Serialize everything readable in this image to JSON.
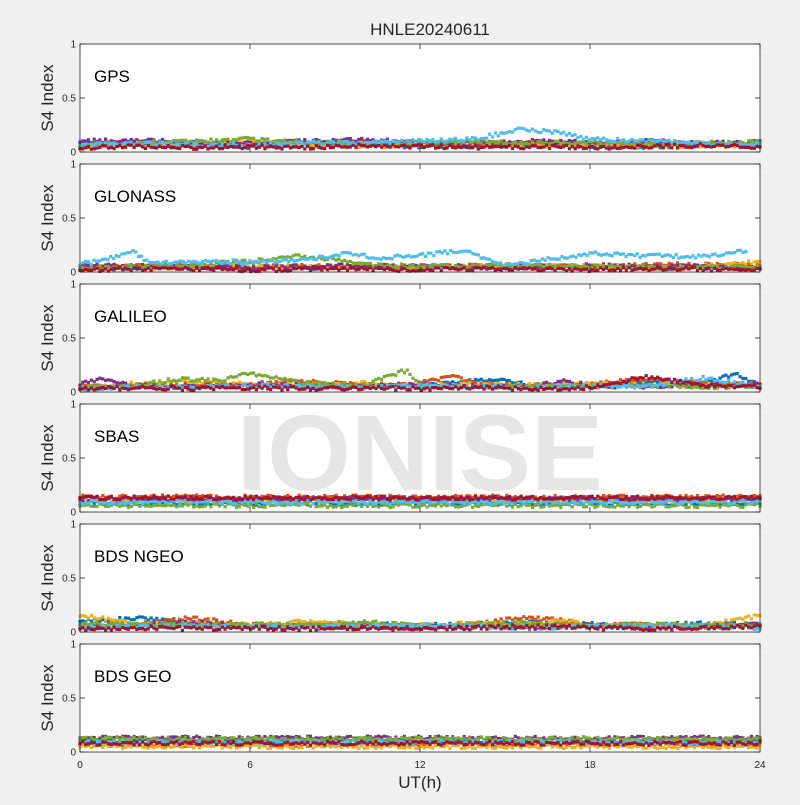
{
  "figure": {
    "title": "HNLE20240611",
    "xlabel": "UT(h)",
    "watermark": "IONISE"
  },
  "chart_data": [
    {
      "type": "scatter",
      "panel_label": "GPS",
      "ylabel": "S4 Index",
      "xlim": [
        0,
        24
      ],
      "ylim": [
        0,
        1
      ],
      "xticks": [
        0,
        6,
        12,
        18,
        24
      ],
      "yticks": [
        0,
        0.5,
        1
      ],
      "series": [
        {
          "color": "#0072BD",
          "x": [
            0,
            2,
            4,
            6,
            8,
            10,
            12,
            14,
            16,
            18,
            20,
            22,
            24
          ],
          "y": [
            0.08,
            0.07,
            0.06,
            0.05,
            0.06,
            0.07,
            0.05,
            0.06,
            0.07,
            0.06,
            0.05,
            0.07,
            0.08
          ]
        },
        {
          "color": "#D95319",
          "x": [
            0,
            2,
            4,
            6,
            8,
            10,
            12,
            14,
            16,
            18,
            20,
            22,
            24
          ],
          "y": [
            0.06,
            0.09,
            0.08,
            0.07,
            0.08,
            0.1,
            0.08,
            0.07,
            0.08,
            0.07,
            0.09,
            0.08,
            0.07
          ]
        },
        {
          "color": "#EDB120",
          "x": [
            0,
            2,
            4,
            6,
            8,
            10,
            12,
            14,
            16,
            18,
            20,
            22,
            24
          ],
          "y": [
            0.05,
            0.06,
            0.07,
            0.09,
            0.06,
            0.05,
            0.07,
            0.09,
            0.06,
            0.07,
            0.06,
            0.05,
            0.06
          ]
        },
        {
          "color": "#7E2F8E",
          "x": [
            0,
            2,
            4,
            6,
            8,
            10,
            12,
            14,
            16,
            18,
            20,
            22,
            24
          ],
          "y": [
            0.1,
            0.11,
            0.09,
            0.08,
            0.1,
            0.11,
            0.09,
            0.08,
            0.1,
            0.09,
            0.1,
            0.08,
            0.09
          ]
        },
        {
          "color": "#77AC30",
          "x": [
            0,
            2,
            4,
            6,
            8,
            10,
            12,
            14,
            16,
            18,
            20,
            22,
            24
          ],
          "y": [
            0.07,
            0.08,
            0.1,
            0.12,
            0.09,
            0.08,
            0.09,
            0.1,
            0.08,
            0.09,
            0.07,
            0.08,
            0.09
          ]
        },
        {
          "color": "#4DBEEE",
          "x": [
            0,
            2,
            4,
            6,
            8,
            10,
            12,
            14,
            15.5,
            17,
            18,
            20,
            22,
            24
          ],
          "y": [
            0.06,
            0.08,
            0.07,
            0.06,
            0.08,
            0.09,
            0.1,
            0.12,
            0.21,
            0.18,
            0.12,
            0.1,
            0.08,
            0.07
          ]
        },
        {
          "color": "#A2142F",
          "x": [
            0,
            2,
            4,
            6,
            8,
            10,
            12,
            14,
            16,
            18,
            20,
            22,
            24
          ],
          "y": [
            0.04,
            0.05,
            0.04,
            0.05,
            0.04,
            0.06,
            0.05,
            0.04,
            0.05,
            0.04,
            0.05,
            0.06,
            0.05
          ]
        }
      ]
    },
    {
      "type": "scatter",
      "panel_label": "GLONASS",
      "ylabel": "S4 Index",
      "xlim": [
        0,
        24
      ],
      "ylim": [
        0,
        1
      ],
      "xticks": [
        0,
        6,
        12,
        18,
        24
      ],
      "yticks": [
        0,
        0.5,
        1
      ],
      "series": [
        {
          "color": "#0072BD",
          "x": [
            0,
            3,
            6,
            9,
            12,
            15,
            18,
            21,
            24
          ],
          "y": [
            0.03,
            0.04,
            0.05,
            0.04,
            0.05,
            0.04,
            0.05,
            0.04,
            0.05
          ]
        },
        {
          "color": "#D95319",
          "x": [
            0,
            3,
            6,
            9,
            12,
            15,
            18,
            21,
            24
          ],
          "y": [
            0.04,
            0.06,
            0.05,
            0.06,
            0.05,
            0.06,
            0.05,
            0.07,
            0.06
          ]
        },
        {
          "color": "#EDB120",
          "x": [
            0,
            3,
            6,
            9,
            12,
            15,
            18,
            21,
            24
          ],
          "y": [
            0.05,
            0.04,
            0.06,
            0.05,
            0.04,
            0.06,
            0.05,
            0.04,
            0.09
          ]
        },
        {
          "color": "#7E2F8E",
          "x": [
            0,
            3,
            6,
            9,
            12,
            15,
            18,
            21,
            24
          ],
          "y": [
            0.06,
            0.05,
            0.04,
            0.06,
            0.05,
            0.04,
            0.06,
            0.05,
            0.04
          ]
        },
        {
          "color": "#77AC30",
          "x": [
            0,
            3,
            6,
            7.5,
            9,
            10,
            12,
            15,
            18,
            21,
            24
          ],
          "y": [
            0.04,
            0.05,
            0.1,
            0.15,
            0.12,
            0.07,
            0.05,
            0.06,
            0.05,
            0.04,
            0.05
          ]
        },
        {
          "color": "#4DBEEE",
          "x": [
            0,
            1,
            1.8,
            2.5,
            8,
            9.5,
            10.5,
            12,
            13.5,
            14,
            15,
            18,
            20,
            22,
            23.5
          ],
          "y": [
            0.07,
            0.12,
            0.2,
            0.08,
            0.11,
            0.18,
            0.13,
            0.15,
            0.2,
            0.16,
            0.06,
            0.17,
            0.15,
            0.14,
            0.2
          ]
        },
        {
          "color": "#A2142F",
          "x": [
            0,
            3,
            6,
            9,
            12,
            15,
            18,
            21,
            24
          ],
          "y": [
            0.02,
            0.03,
            0.02,
            0.03,
            0.02,
            0.03,
            0.02,
            0.03,
            0.02
          ]
        }
      ]
    },
    {
      "type": "scatter",
      "panel_label": "GALILEO",
      "ylabel": "S4 Index",
      "xlim": [
        0,
        24
      ],
      "ylim": [
        0,
        1
      ],
      "xticks": [
        0,
        6,
        12,
        18,
        24
      ],
      "yticks": [
        0,
        0.5,
        1
      ],
      "series": [
        {
          "color": "#0072BD",
          "x": [
            0,
            3,
            6,
            9,
            12,
            14.5,
            16,
            18,
            20,
            22,
            23.2,
            24
          ],
          "y": [
            0.04,
            0.05,
            0.06,
            0.05,
            0.06,
            0.12,
            0.06,
            0.05,
            0.1,
            0.08,
            0.17,
            0.06
          ]
        },
        {
          "color": "#D95319",
          "x": [
            0,
            2,
            4,
            6,
            8,
            10,
            12,
            13.2,
            14,
            16,
            18,
            20,
            22,
            24
          ],
          "y": [
            0.06,
            0.05,
            0.07,
            0.08,
            0.1,
            0.06,
            0.08,
            0.15,
            0.07,
            0.06,
            0.07,
            0.12,
            0.08,
            0.07
          ]
        },
        {
          "color": "#EDB120",
          "x": [
            0,
            2,
            4,
            6,
            8,
            10,
            12,
            14,
            16,
            18,
            20,
            22,
            24
          ],
          "y": [
            0.05,
            0.08,
            0.1,
            0.07,
            0.06,
            0.08,
            0.06,
            0.07,
            0.06,
            0.08,
            0.06,
            0.07,
            0.06
          ]
        },
        {
          "color": "#7E2F8E",
          "x": [
            0,
            0.6,
            2,
            4,
            6,
            8,
            10,
            12,
            14,
            16,
            17,
            18,
            20,
            22,
            24
          ],
          "y": [
            0.07,
            0.12,
            0.06,
            0.05,
            0.07,
            0.06,
            0.05,
            0.07,
            0.05,
            0.06,
            0.1,
            0.06,
            0.05,
            0.06,
            0.07
          ]
        },
        {
          "color": "#77AC30",
          "x": [
            0,
            2,
            3.5,
            5,
            6,
            7,
            8,
            10,
            11.5,
            12,
            14,
            16,
            18,
            20,
            22,
            24
          ],
          "y": [
            0.04,
            0.06,
            0.12,
            0.1,
            0.18,
            0.12,
            0.08,
            0.06,
            0.2,
            0.06,
            0.05,
            0.06,
            0.05,
            0.06,
            0.05,
            0.04
          ]
        },
        {
          "color": "#4DBEEE",
          "x": [
            0,
            2,
            4,
            6,
            8,
            10,
            12,
            14,
            16,
            18,
            20,
            22,
            24
          ],
          "y": [
            0.03,
            0.05,
            0.04,
            0.06,
            0.05,
            0.04,
            0.06,
            0.05,
            0.04,
            0.06,
            0.05,
            0.13,
            0.05
          ]
        },
        {
          "color": "#A2142F",
          "x": [
            0,
            2,
            4,
            6,
            8,
            10,
            12,
            14,
            16,
            18,
            20,
            21,
            22,
            24
          ],
          "y": [
            0.03,
            0.04,
            0.03,
            0.04,
            0.03,
            0.04,
            0.03,
            0.04,
            0.03,
            0.04,
            0.14,
            0.1,
            0.06,
            0.05
          ]
        }
      ]
    },
    {
      "type": "scatter",
      "panel_label": "SBAS",
      "ylabel": "S4 Index",
      "xlim": [
        0,
        24
      ],
      "ylim": [
        0,
        1
      ],
      "xticks": [
        0,
        6,
        12,
        18,
        24
      ],
      "yticks": [
        0,
        0.5,
        1
      ],
      "series": [
        {
          "color": "#0072BD",
          "x": [
            0,
            24
          ],
          "y": [
            0.08,
            0.08
          ]
        },
        {
          "color": "#D95319",
          "x": [
            0,
            24
          ],
          "y": [
            0.14,
            0.14
          ]
        },
        {
          "color": "#EDB120",
          "x": [
            0,
            24
          ],
          "y": [
            0.11,
            0.11
          ]
        },
        {
          "color": "#7E2F8E",
          "x": [
            0,
            24
          ],
          "y": [
            0.12,
            0.12
          ]
        },
        {
          "color": "#77AC30",
          "x": [
            0,
            24
          ],
          "y": [
            0.06,
            0.06
          ]
        },
        {
          "color": "#4DBEEE",
          "x": [
            0,
            24
          ],
          "y": [
            0.09,
            0.09
          ]
        },
        {
          "color": "#A2142F",
          "x": [
            0,
            24
          ],
          "y": [
            0.13,
            0.13
          ]
        }
      ]
    },
    {
      "type": "scatter",
      "panel_label": "BDS NGEO",
      "ylabel": "S4 Index",
      "xlim": [
        0,
        24
      ],
      "ylim": [
        0,
        1
      ],
      "xticks": [
        0,
        6,
        12,
        18,
        24
      ],
      "yticks": [
        0,
        0.5,
        1
      ],
      "series": [
        {
          "color": "#0072BD",
          "x": [
            0,
            2,
            4,
            6,
            8,
            10,
            12,
            14,
            16,
            18,
            20,
            22,
            24
          ],
          "y": [
            0.1,
            0.13,
            0.08,
            0.05,
            0.07,
            0.08,
            0.06,
            0.07,
            0.09,
            0.07,
            0.06,
            0.08,
            0.07
          ]
        },
        {
          "color": "#D95319",
          "x": [
            0,
            2,
            4,
            6,
            8,
            10,
            12,
            14,
            15.5,
            17,
            18,
            20,
            22,
            24
          ],
          "y": [
            0.06,
            0.07,
            0.13,
            0.06,
            0.08,
            0.06,
            0.05,
            0.07,
            0.13,
            0.11,
            0.06,
            0.07,
            0.05,
            0.06
          ]
        },
        {
          "color": "#EDB120",
          "x": [
            0,
            1,
            2,
            4,
            6,
            8,
            10,
            12,
            14,
            16,
            17,
            18,
            20,
            22,
            24
          ],
          "y": [
            0.15,
            0.12,
            0.07,
            0.08,
            0.06,
            0.1,
            0.07,
            0.06,
            0.08,
            0.07,
            0.12,
            0.06,
            0.05,
            0.06,
            0.15
          ]
        },
        {
          "color": "#7E2F8E",
          "x": [
            0,
            2,
            4,
            6,
            8,
            10,
            12,
            14,
            16,
            18,
            20,
            22,
            24
          ],
          "y": [
            0.05,
            0.06,
            0.09,
            0.05,
            0.04,
            0.05,
            0.04,
            0.05,
            0.04,
            0.06,
            0.04,
            0.05,
            0.08
          ]
        },
        {
          "color": "#77AC30",
          "x": [
            0,
            2,
            4,
            6,
            8,
            10,
            12,
            14,
            16,
            18,
            20,
            22,
            24
          ],
          "y": [
            0.07,
            0.08,
            0.06,
            0.07,
            0.06,
            0.09,
            0.06,
            0.07,
            0.08,
            0.06,
            0.07,
            0.06,
            0.07
          ]
        },
        {
          "color": "#4DBEEE",
          "x": [
            0,
            2,
            4,
            6,
            8,
            10,
            12,
            14,
            16,
            18,
            20,
            22,
            24
          ],
          "y": [
            0.04,
            0.05,
            0.06,
            0.05,
            0.04,
            0.05,
            0.06,
            0.05,
            0.04,
            0.05,
            0.06,
            0.05,
            0.04
          ]
        },
        {
          "color": "#A2142F",
          "x": [
            0,
            2,
            4,
            6,
            8,
            10,
            12,
            14,
            16,
            18,
            20,
            22,
            24
          ],
          "y": [
            0.03,
            0.04,
            0.03,
            0.04,
            0.03,
            0.04,
            0.03,
            0.04,
            0.05,
            0.04,
            0.03,
            0.04,
            0.05
          ]
        }
      ]
    },
    {
      "type": "scatter",
      "panel_label": "BDS GEO",
      "ylabel": "S4 Index",
      "xlim": [
        0,
        24
      ],
      "ylim": [
        0,
        1
      ],
      "xticks": [
        0,
        6,
        12,
        18,
        24
      ],
      "yticks": [
        0,
        0.5,
        1
      ],
      "series": [
        {
          "color": "#0072BD",
          "x": [
            0,
            24
          ],
          "y": [
            0.1,
            0.1
          ]
        },
        {
          "color": "#D95319",
          "x": [
            0,
            24
          ],
          "y": [
            0.07,
            0.07
          ]
        },
        {
          "color": "#EDB120",
          "x": [
            0,
            24
          ],
          "y": [
            0.05,
            0.05
          ]
        },
        {
          "color": "#7E2F8E",
          "x": [
            0,
            24
          ],
          "y": [
            0.13,
            0.13
          ]
        },
        {
          "color": "#77AC30",
          "x": [
            0,
            24
          ],
          "y": [
            0.12,
            0.12
          ]
        },
        {
          "color": "#4DBEEE",
          "x": [
            0,
            24
          ],
          "y": [
            0.09,
            0.09
          ]
        },
        {
          "color": "#A2142F",
          "x": [
            0,
            24
          ],
          "y": [
            0.08,
            0.08
          ]
        }
      ]
    }
  ]
}
